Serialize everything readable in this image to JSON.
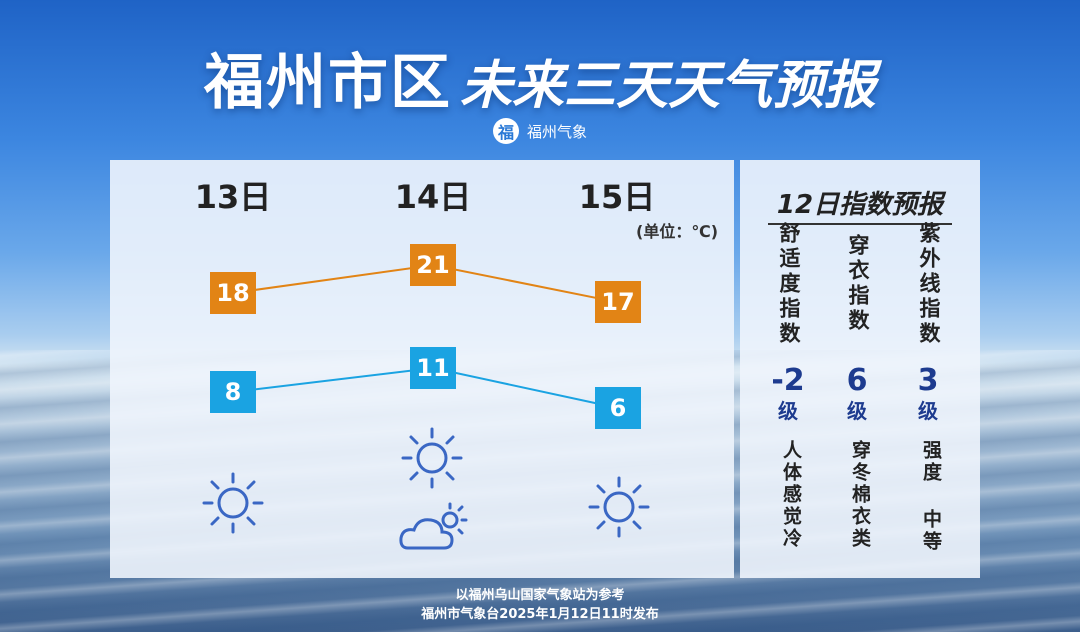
{
  "title": {
    "place": "福州市区",
    "subtitle": "未来三天天气预报"
  },
  "brand": {
    "logo_char": "福",
    "name": "福州气象"
  },
  "unit_label": "(单位：℃)",
  "days": [
    {
      "label": "13日",
      "high": "18",
      "low": "8",
      "icon": "sunny-icon"
    },
    {
      "label": "14日",
      "high": "21",
      "low": "11",
      "icon": "sunny-and-partly-cloudy-icon"
    },
    {
      "label": "15日",
      "high": "17",
      "low": "6",
      "icon": "sunny-icon"
    }
  ],
  "chart_data": {
    "type": "line",
    "categories": [
      "13日",
      "14日",
      "15日"
    ],
    "series": [
      {
        "values": [
          18,
          21,
          17
        ],
        "color": "#e28415"
      },
      {
        "values": [
          8,
          11,
          6
        ],
        "color": "#1aa3e2"
      }
    ],
    "ylabel": "(单位：℃)"
  },
  "index": {
    "title": "12日指数预报",
    "items": [
      {
        "name": "舒适度指数",
        "level": "-2",
        "level_unit": "级",
        "desc": "人体感觉冷"
      },
      {
        "name": "穿衣指数",
        "level": "6",
        "level_unit": "级",
        "desc": "穿冬棉衣类"
      },
      {
        "name": "紫外线指数",
        "level": "3",
        "level_unit": "级",
        "desc": "强度 中等"
      }
    ]
  },
  "footer": {
    "line1": "以福州乌山国家气象站为参考",
    "line2": "福州市气象台2025年1月12日11时发布"
  },
  "colors": {
    "high": "#e28415",
    "low": "#1aa3e2",
    "icon": "#3a67c4",
    "level": "#1d3b8f"
  }
}
